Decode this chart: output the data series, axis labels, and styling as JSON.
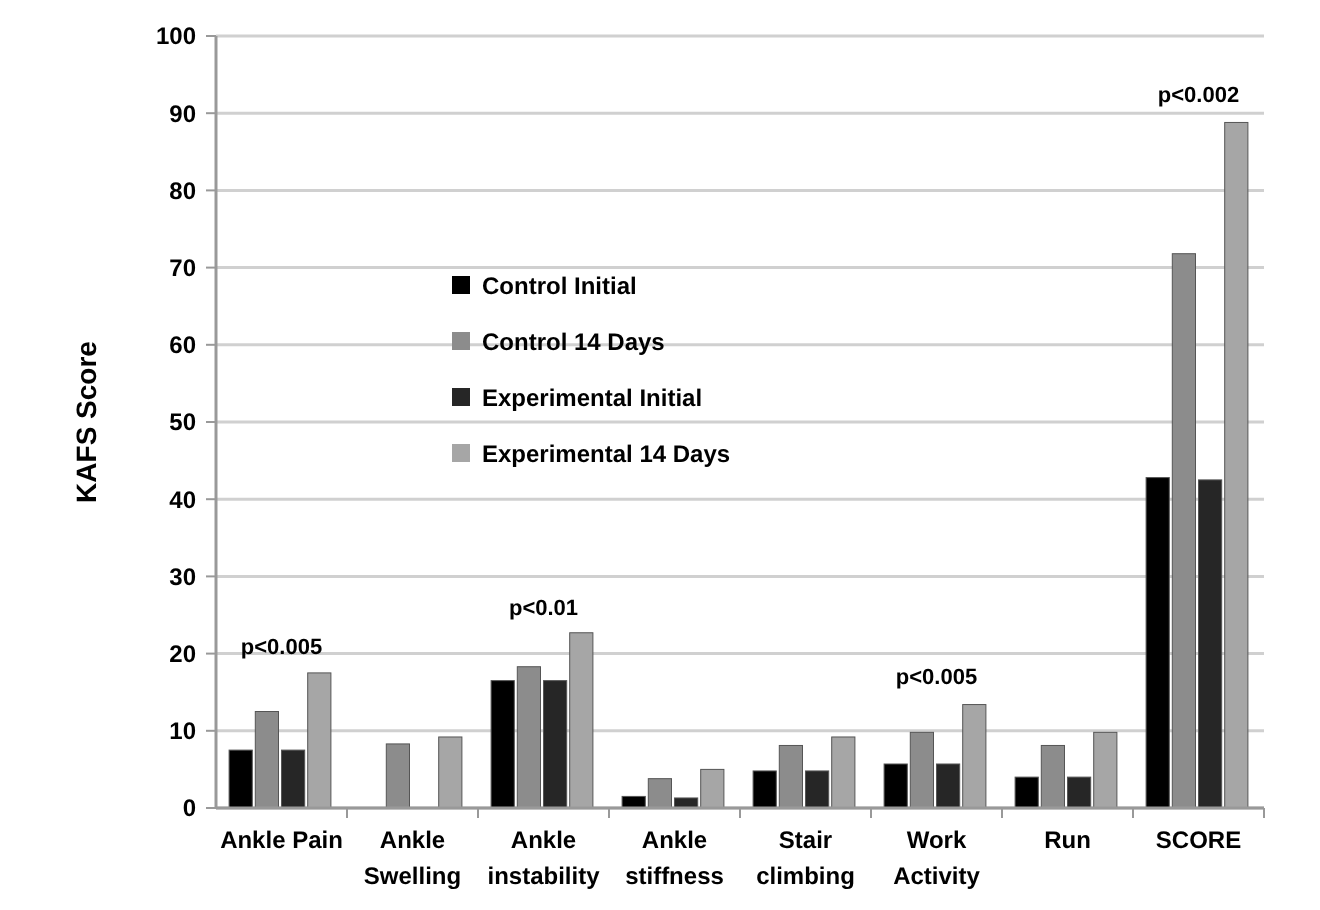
{
  "chart_data": {
    "type": "bar",
    "ylabel": "KAFS Score",
    "categories": [
      "Ankle Pain",
      "Ankle\nSwelling",
      "Ankle\ninstability",
      "Ankle\nstiffness",
      "Stair\nclimbing",
      "Work\nActivity",
      "Run",
      "SCORE"
    ],
    "series": [
      {
        "name": "Control Initial",
        "color": "#000000",
        "values": [
          7.5,
          0,
          16.5,
          1.5,
          4.8,
          5.7,
          4,
          42.8
        ]
      },
      {
        "name": "Control 14 Days",
        "color": "#8c8c8c",
        "values": [
          12.5,
          8.3,
          18.3,
          3.8,
          8.1,
          9.8,
          8.1,
          71.8
        ]
      },
      {
        "name": "Experimental Initial",
        "color": "#262626",
        "values": [
          7.5,
          0,
          16.5,
          1.3,
          4.8,
          5.7,
          4,
          42.5
        ]
      },
      {
        "name": "Experimental 14 Days",
        "color": "#a6a6a6",
        "values": [
          17.5,
          9.2,
          22.7,
          5,
          9.2,
          13.4,
          9.8,
          88.8
        ]
      }
    ],
    "ylim": [
      0,
      100
    ],
    "yticks": [
      0,
      10,
      20,
      30,
      40,
      50,
      60,
      70,
      80,
      90,
      100
    ],
    "grid": "y",
    "legend": "top left",
    "annotations": [
      "p<0.005",
      "p<0.01",
      "p<0.005",
      "p<0.002"
    ]
  }
}
